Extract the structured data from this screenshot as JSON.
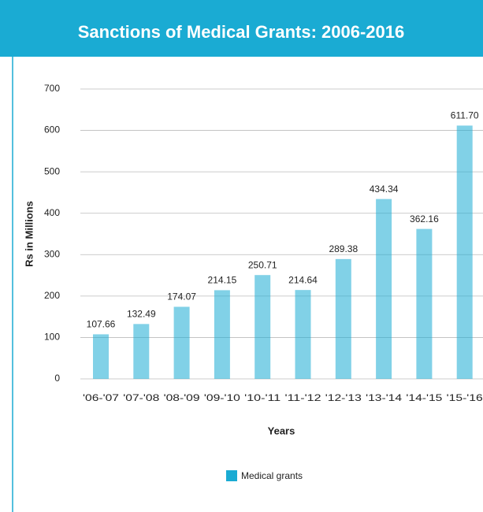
{
  "chart_data": {
    "type": "bar",
    "title": "Sanctions of Medical Grants: 2006-2016",
    "y_label": "Rs in Millions",
    "x_label": "Years",
    "categories": [
      "'06-'07",
      "'07-'08",
      "'08-'09",
      "'09-'10",
      "'10-'11",
      "'11-'12",
      "'12-'13",
      "'13-'14",
      "'14-'15",
      "'15-'16"
    ],
    "series": [
      {
        "name": "Medical grants",
        "color": "#1aabd3",
        "values": [
          107.66,
          132.49,
          174.07,
          214.15,
          250.71,
          214.64,
          289.38,
          434.34,
          362.16,
          611.7
        ],
        "value_labels": [
          "107.66",
          "132.49",
          "174.07",
          "214.15",
          "250.71",
          "214.64",
          "289.38",
          "434.34",
          "362.16",
          "611.70"
        ]
      }
    ],
    "ylim": [
      0,
      700
    ],
    "yticks": [
      0,
      100,
      200,
      300,
      400,
      500,
      600,
      700
    ],
    "grid": true,
    "legend": "bottom"
  }
}
